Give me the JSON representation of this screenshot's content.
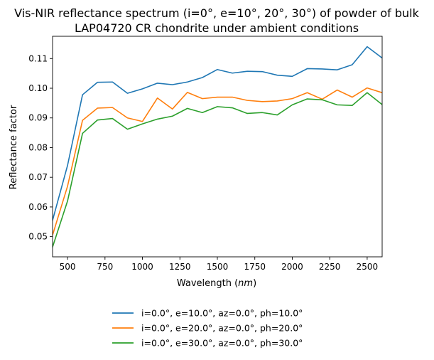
{
  "chart_data": {
    "type": "line",
    "title_lines": [
      "Vis-NIR reflectance spectrum (i=0°, e=10°, 20°, 30°) of powder of bulk",
      "LAP04720 CR chondrite under ambient conditions"
    ],
    "xlabel": "Wavelength (",
    "xlabel_unit": "nm",
    "xlabel_close": ")",
    "ylabel": "Reflectance factor",
    "xlim": [
      400,
      2600
    ],
    "ylim": [
      0.0432,
      0.1175
    ],
    "xticks": [
      500,
      750,
      1000,
      1250,
      1500,
      1750,
      2000,
      2250,
      2500
    ],
    "xtick_labels": [
      "500",
      "750",
      "1000",
      "1250",
      "1500",
      "1750",
      "2000",
      "2250",
      "2500"
    ],
    "yticks": [
      0.05,
      0.06,
      0.07,
      0.08,
      0.09,
      0.1,
      0.11
    ],
    "ytick_labels": [
      "0.05",
      "0.06",
      "0.07",
      "0.08",
      "0.09",
      "0.10",
      "0.11"
    ],
    "grid": false,
    "legend_position": "below-center",
    "x": [
      400,
      500,
      600,
      700,
      800,
      900,
      1000,
      1100,
      1200,
      1300,
      1400,
      1500,
      1600,
      1700,
      1800,
      1900,
      2000,
      2100,
      2200,
      2300,
      2400,
      2500,
      2600
    ],
    "series": [
      {
        "name": "i=0.0°, e=10.0°, az=0.0°, ph=10.0°",
        "color": "#1f77b4",
        "values": [
          0.0555,
          0.074,
          0.0978,
          0.102,
          0.1021,
          0.0983,
          0.0998,
          0.1017,
          0.1012,
          0.1021,
          0.1036,
          0.1063,
          0.1051,
          0.1057,
          0.1056,
          0.1044,
          0.104,
          0.1066,
          0.1065,
          0.1062,
          0.1079,
          0.114,
          0.1102
        ]
      },
      {
        "name": "i=0.0°, e=20.0°, az=0.0°, ph=20.0°",
        "color": "#ff7f0e",
        "values": [
          0.0505,
          0.067,
          0.0892,
          0.0933,
          0.0935,
          0.09,
          0.0888,
          0.0967,
          0.093,
          0.0986,
          0.0965,
          0.097,
          0.097,
          0.0959,
          0.0955,
          0.0957,
          0.0965,
          0.0985,
          0.0963,
          0.0994,
          0.097,
          0.1001,
          0.0985
        ]
      },
      {
        "name": "i=0.0°, e=30.0°, az=0.0°, ph=30.0°",
        "color": "#2ca02c",
        "values": [
          0.0465,
          0.062,
          0.0848,
          0.0893,
          0.0898,
          0.0862,
          0.088,
          0.0896,
          0.0906,
          0.0932,
          0.0918,
          0.0938,
          0.0934,
          0.0915,
          0.0918,
          0.091,
          0.0944,
          0.0964,
          0.0961,
          0.0944,
          0.0942,
          0.0985,
          0.0945
        ]
      }
    ]
  }
}
